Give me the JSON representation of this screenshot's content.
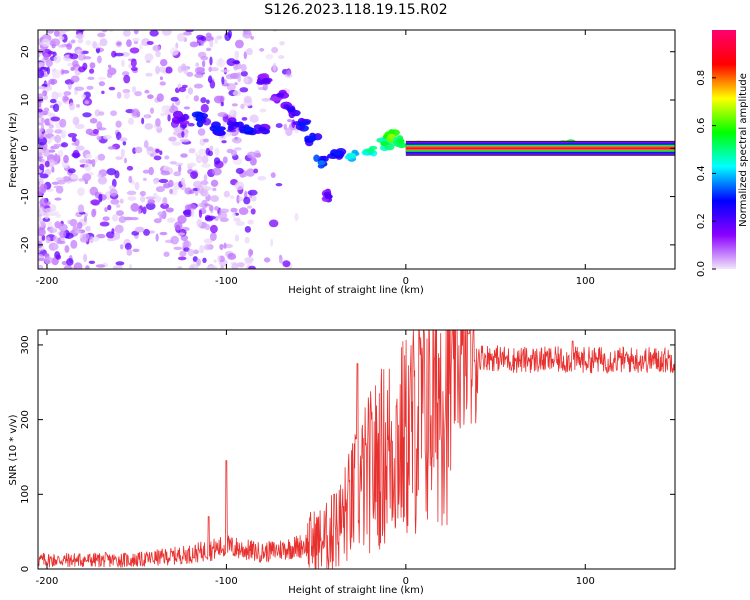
{
  "title": "S126.2023.118.19.15.R02",
  "charts": [
    {
      "type": "heatmap",
      "xlabel": "Height of straight line (km)",
      "ylabel": "Frequency (Hz)",
      "xlim": [
        -205,
        150
      ],
      "ylim": [
        -25,
        24.5
      ],
      "xticks": [
        -200,
        -100,
        0,
        100
      ],
      "yticks": [
        -20,
        -10,
        0,
        10,
        20
      ],
      "colorbar": {
        "label": "Normalized spectral amplitude",
        "range": [
          0,
          1
        ],
        "ticks": [
          "0.0",
          "0.2",
          "0.4",
          "0.6",
          "0.8"
        ],
        "tick_values": [
          0,
          0.2,
          0.4,
          0.6,
          0.8
        ],
        "colormap": [
          "#f2e6fa",
          "#8a00ff",
          "#0000ff",
          "#00ffff",
          "#00ff00",
          "#ffff00",
          "#ff0000",
          "#ff0070"
        ]
      },
      "ridge": [
        {
          "x": -125,
          "f": 6,
          "amp": 0.2
        },
        {
          "x": -115,
          "f": 6,
          "amp": 0.3
        },
        {
          "x": -105,
          "f": 4,
          "amp": 0.3
        },
        {
          "x": -95,
          "f": 5,
          "amp": 0.25
        },
        {
          "x": -88,
          "f": 4,
          "amp": 0.3
        },
        {
          "x": -80,
          "f": 4,
          "amp": 0.25
        },
        {
          "x": -78,
          "f": 14,
          "amp": 0.2
        },
        {
          "x": -70,
          "f": 11,
          "amp": 0.2
        },
        {
          "x": -64,
          "f": 8,
          "amp": 0.25
        },
        {
          "x": -58,
          "f": 5,
          "amp": 0.3
        },
        {
          "x": -52,
          "f": 2,
          "amp": 0.3
        },
        {
          "x": -47,
          "f": -3,
          "amp": 0.35
        },
        {
          "x": -43,
          "f": -10,
          "amp": 0.2
        },
        {
          "x": -38,
          "f": -1,
          "amp": 0.3
        },
        {
          "x": -30,
          "f": -1.5,
          "amp": 0.45
        },
        {
          "x": -20,
          "f": -0.5,
          "amp": 0.5
        },
        {
          "x": -12,
          "f": 1,
          "amp": 0.55
        },
        {
          "x": -8,
          "f": 2.5,
          "amp": 0.65
        },
        {
          "x": -3,
          "f": 1.5,
          "amp": 0.55
        },
        {
          "x": 5,
          "f": 0.3,
          "amp": 0.7
        },
        {
          "x": 90,
          "f": 0.3,
          "amp": 0.6
        }
      ],
      "carrier_line": {
        "x_start": 0,
        "x_end": 150,
        "f": 0,
        "amp": 1.0
      }
    },
    {
      "type": "line",
      "xlabel": "Height of straight line (km)",
      "ylabel": "SNR (10 * v/v)",
      "xlim": [
        -205,
        150
      ],
      "ylim": [
        0,
        320
      ],
      "xticks": [
        -200,
        -100,
        0,
        100
      ],
      "yticks": [
        0,
        100,
        200,
        300
      ],
      "color": "#e8312f",
      "trend": {
        "x": [
          -205,
          -150,
          -120,
          -100,
          -80,
          -60,
          -45,
          -38,
          -30,
          -20,
          -10,
          0,
          10,
          20,
          30,
          40,
          60,
          100,
          150
        ],
        "y": [
          12,
          12,
          20,
          30,
          22,
          30,
          40,
          55,
          90,
          130,
          160,
          175,
          215,
          250,
          275,
          285,
          280,
          280,
          280
        ]
      },
      "spikes": [
        {
          "x": -100,
          "y": 145
        },
        {
          "x": -110,
          "y": 70
        },
        {
          "x": -40,
          "y": 100
        },
        {
          "x": -27,
          "y": 275
        },
        {
          "x": 35,
          "y": 315
        },
        {
          "x": 93,
          "y": 305
        }
      ]
    }
  ]
}
